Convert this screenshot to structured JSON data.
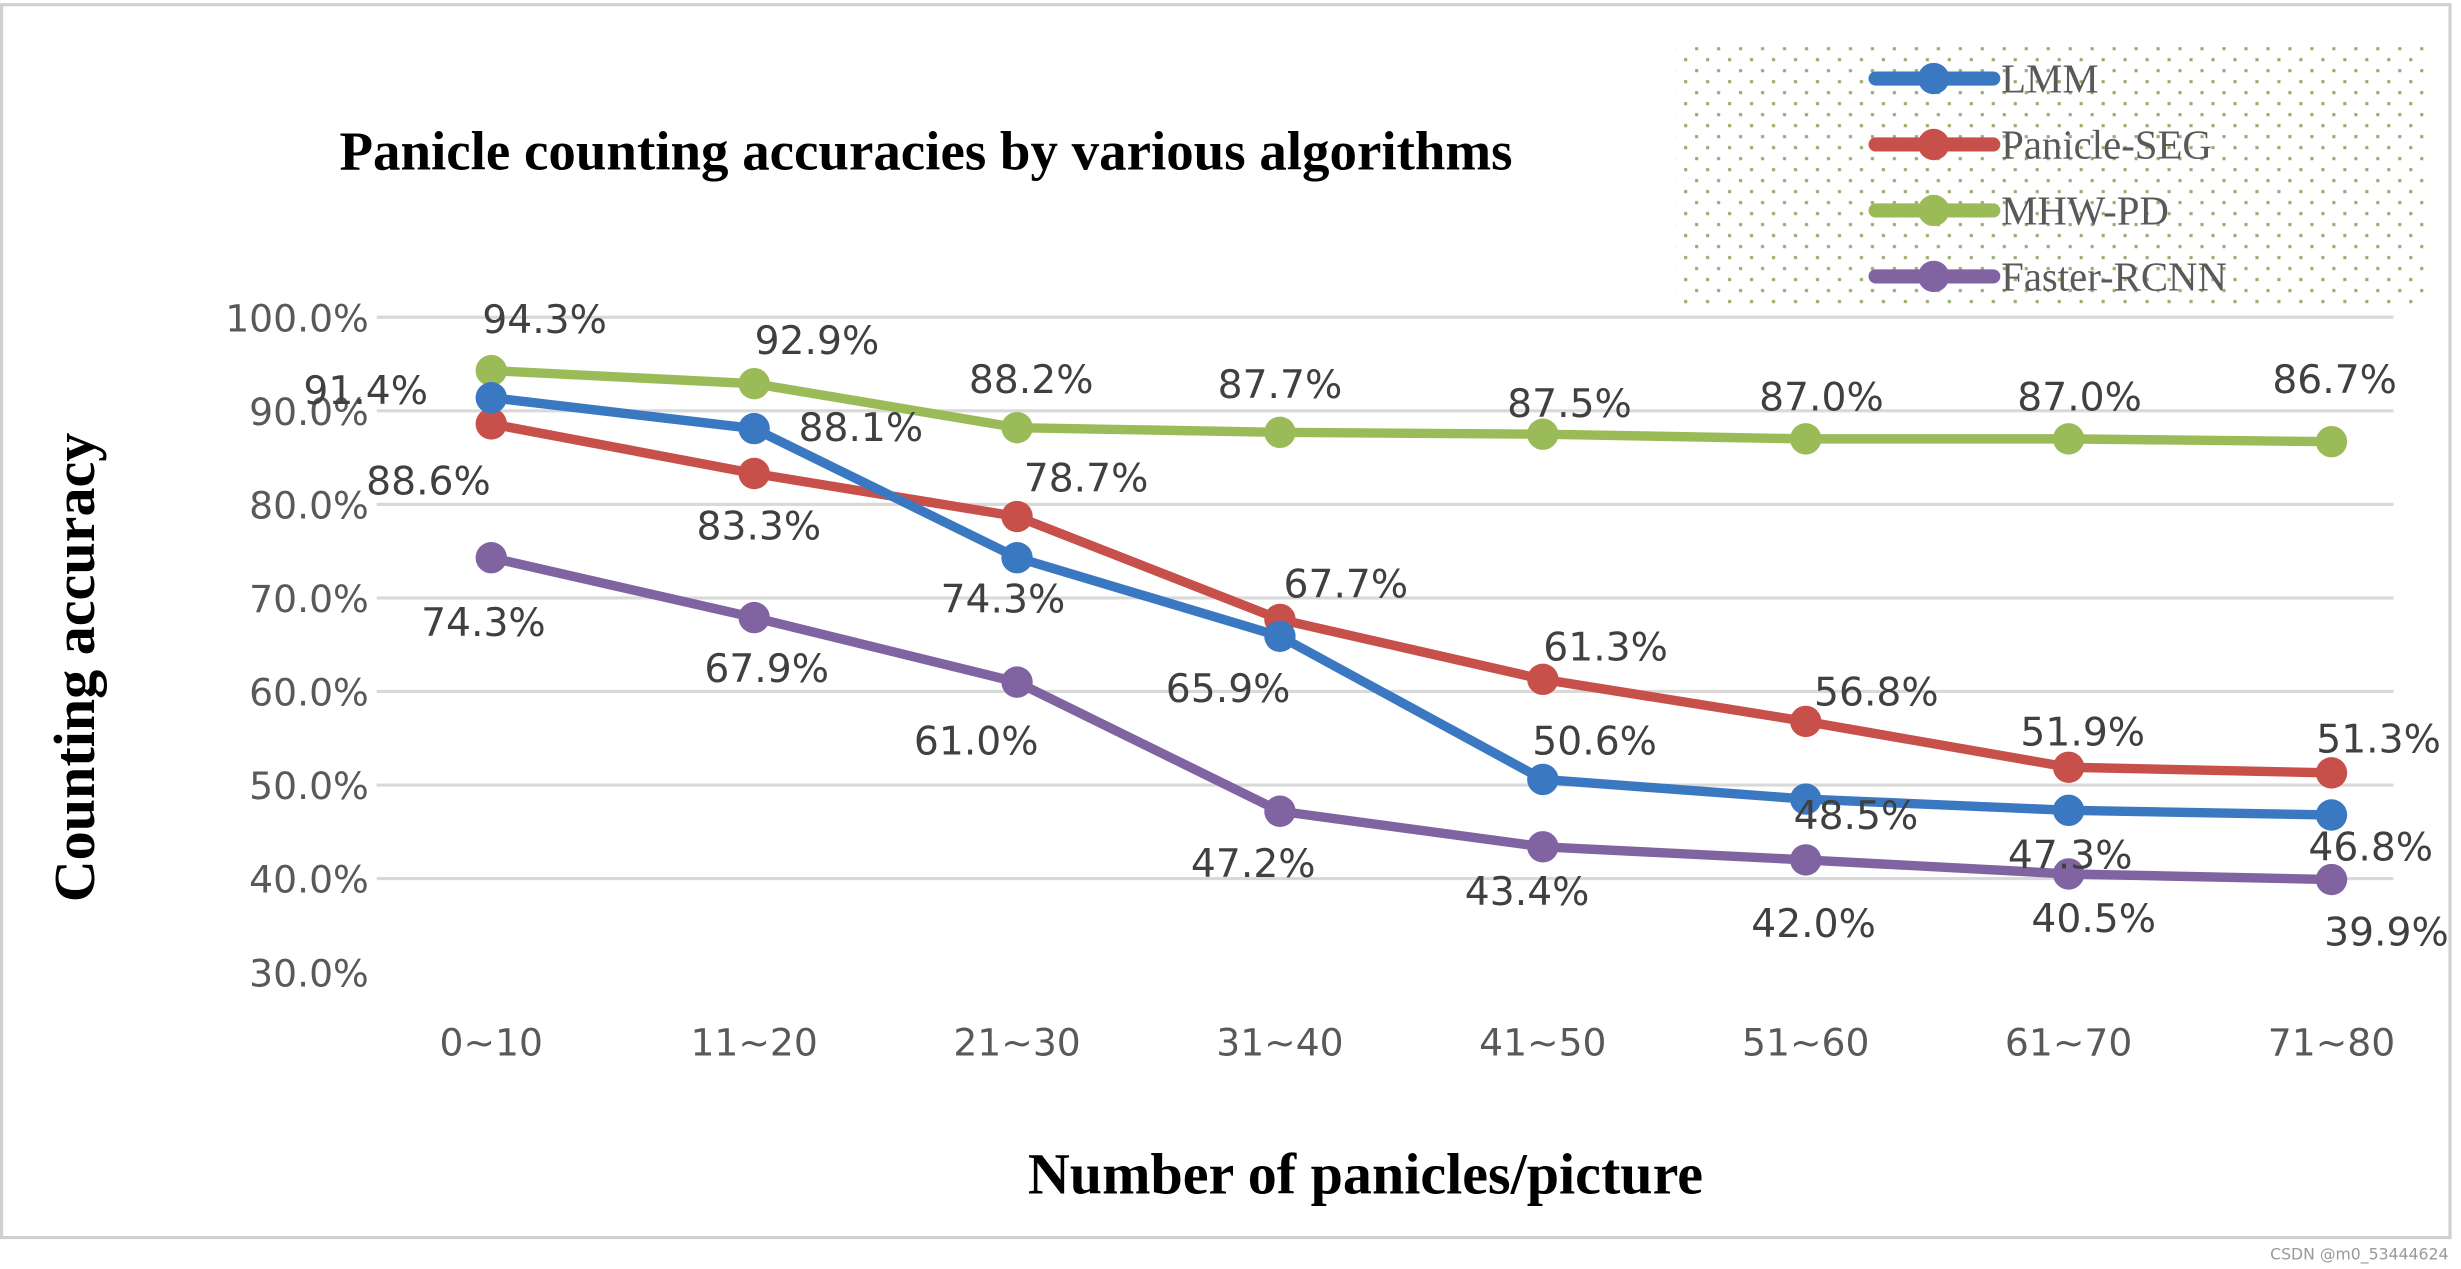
{
  "chart_data": {
    "type": "line",
    "title": "Panicle counting accuracies by various algorithms",
    "xlabel": "Number of panicles/picture",
    "ylabel": "Counting accuracy",
    "categories": [
      "0~10",
      "11~20",
      "21~30",
      "31~40",
      "41~50",
      "51~60",
      "61~70",
      "71~80"
    ],
    "yticks": [
      "30.0%",
      "40.0%",
      "50.0%",
      "60.0%",
      "70.0%",
      "80.0%",
      "90.0%",
      "100.0%"
    ],
    "ylim": [
      30,
      100
    ],
    "grid": "horizontal",
    "legend_position": "top-right",
    "series": [
      {
        "name": "LMM",
        "color": "#3A78C2",
        "values": [
          91.4,
          88.1,
          74.3,
          65.9,
          50.6,
          48.5,
          47.3,
          46.8
        ],
        "labels": [
          "91.4%",
          "88.1%",
          "74.3%",
          "65.9%",
          "50.6%",
          "48.5%",
          "47.3%",
          "46.8%"
        ]
      },
      {
        "name": "Panicle-SEG",
        "color": "#C8504A",
        "values": [
          88.6,
          83.3,
          78.7,
          67.7,
          61.3,
          56.8,
          51.9,
          51.3
        ],
        "labels": [
          "88.6%",
          "83.3%",
          "78.7%",
          "67.7%",
          "61.3%",
          "56.8%",
          "51.9%",
          "51.3%"
        ]
      },
      {
        "name": "MHW-PD",
        "color": "#9BBB59",
        "values": [
          94.3,
          92.9,
          88.2,
          87.7,
          87.5,
          87.0,
          87.0,
          86.7
        ],
        "labels": [
          "94.3%",
          "92.9%",
          "88.2%",
          "87.7%",
          "87.5%",
          "87.0%",
          "87.0%",
          "86.7%"
        ]
      },
      {
        "name": "Faster-RCNN",
        "color": "#8064A2",
        "values": [
          74.3,
          67.9,
          61.0,
          47.2,
          43.4,
          42.0,
          40.5,
          39.9
        ],
        "labels": [
          "74.3%",
          "67.9%",
          "61.0%",
          "47.2%",
          "43.4%",
          "42.0%",
          "40.5%",
          "39.9%"
        ]
      }
    ]
  },
  "watermark": "CSDN @m0_53444624"
}
